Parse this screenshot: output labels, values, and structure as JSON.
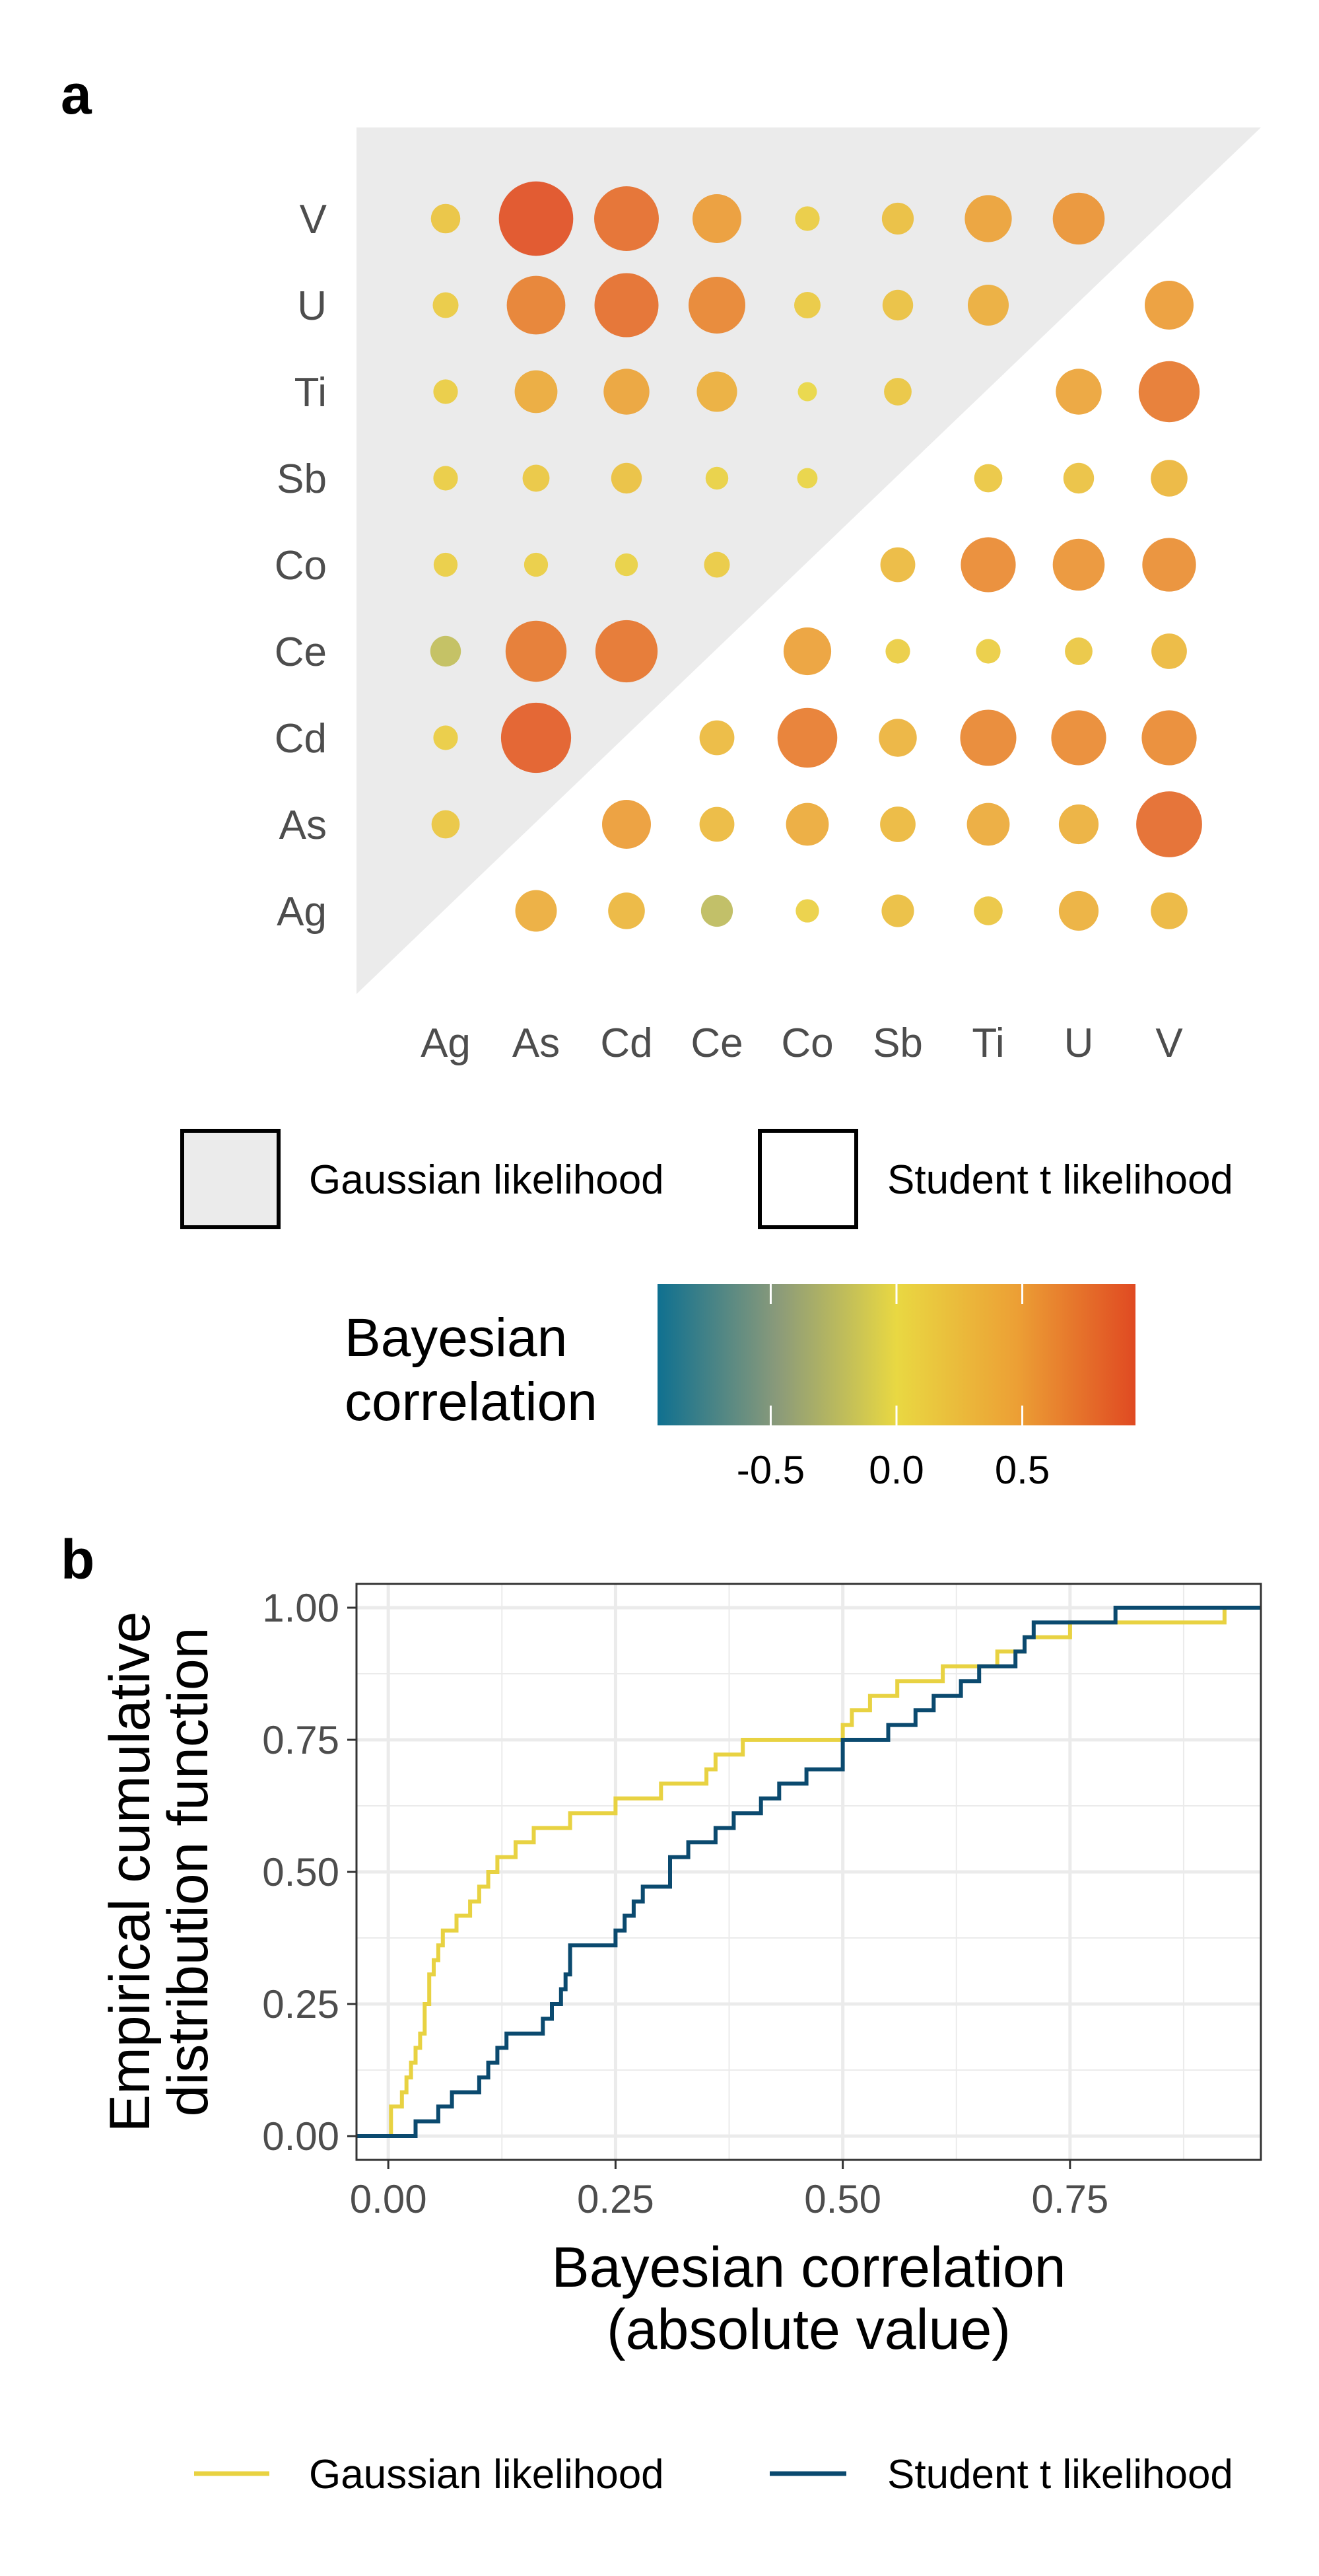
{
  "panels": {
    "a": "a",
    "b": "b"
  },
  "colors": {
    "gaussian_fill": "#ebebeb",
    "gaussian_line": "#e8d242",
    "student_line": "#0b4a6f",
    "scale": [
      "#0f7090",
      "#8a9a7a",
      "#e9d842",
      "#eca035",
      "#e04a22"
    ]
  },
  "chart_data": [
    {
      "type": "heatmap",
      "variables": [
        "Ag",
        "As",
        "Cd",
        "Ce",
        "Co",
        "Sb",
        "Ti",
        "U",
        "V"
      ],
      "x_tick_labels": [
        "Ag",
        "As",
        "Cd",
        "Ce",
        "Co",
        "Sb",
        "Ti",
        "U",
        "V"
      ],
      "y_tick_labels": [
        "Ag",
        "As",
        "Cd",
        "Ce",
        "Co",
        "Sb",
        "Ti",
        "U",
        "V"
      ],
      "gaussian_lower_triangle": [
        {
          "row": "V",
          "col": "Ag",
          "value": 0.18
        },
        {
          "row": "V",
          "col": "As",
          "value": 0.92
        },
        {
          "row": "V",
          "col": "Cd",
          "value": 0.76
        },
        {
          "row": "V",
          "col": "Ce",
          "value": 0.5
        },
        {
          "row": "V",
          "col": "Co",
          "value": 0.1
        },
        {
          "row": "V",
          "col": "Sb",
          "value": 0.22
        },
        {
          "row": "V",
          "col": "Ti",
          "value": 0.47
        },
        {
          "row": "V",
          "col": "U",
          "value": 0.55
        },
        {
          "row": "U",
          "col": "Ag",
          "value": 0.12
        },
        {
          "row": "U",
          "col": "As",
          "value": 0.66
        },
        {
          "row": "U",
          "col": "Cd",
          "value": 0.75
        },
        {
          "row": "U",
          "col": "Ce",
          "value": 0.63
        },
        {
          "row": "U",
          "col": "Co",
          "value": 0.13
        },
        {
          "row": "U",
          "col": "Sb",
          "value": 0.2
        },
        {
          "row": "U",
          "col": "Ti",
          "value": 0.37
        },
        {
          "row": "Ti",
          "col": "Ag",
          "value": 0.1
        },
        {
          "row": "Ti",
          "col": "As",
          "value": 0.4
        },
        {
          "row": "Ti",
          "col": "Cd",
          "value": 0.45
        },
        {
          "row": "Ti",
          "col": "Ce",
          "value": 0.36
        },
        {
          "row": "Ti",
          "col": "Co",
          "value": 0.01
        },
        {
          "row": "Ti",
          "col": "Sb",
          "value": 0.15
        },
        {
          "row": "Sb",
          "col": "Ag",
          "value": 0.1
        },
        {
          "row": "Sb",
          "col": "As",
          "value": 0.14
        },
        {
          "row": "Sb",
          "col": "Cd",
          "value": 0.2
        },
        {
          "row": "Sb",
          "col": "Ce",
          "value": 0.07
        },
        {
          "row": "Sb",
          "col": "Co",
          "value": 0.03
        },
        {
          "row": "Co",
          "col": "Ag",
          "value": 0.09
        },
        {
          "row": "Co",
          "col": "As",
          "value": 0.09
        },
        {
          "row": "Co",
          "col": "Cd",
          "value": 0.07
        },
        {
          "row": "Co",
          "col": "Ce",
          "value": 0.12
        },
        {
          "row": "Ce",
          "col": "Ag",
          "value": -0.2
        },
        {
          "row": "Ce",
          "col": "As",
          "value": 0.7
        },
        {
          "row": "Ce",
          "col": "Cd",
          "value": 0.72
        },
        {
          "row": "Cd",
          "col": "Ag",
          "value": 0.1
        },
        {
          "row": "Cd",
          "col": "As",
          "value": 0.85
        },
        {
          "row": "As",
          "col": "Ag",
          "value": 0.16
        }
      ],
      "student_upper_triangle": [
        {
          "row": "U",
          "col": "V",
          "value": 0.5
        },
        {
          "row": "Ti",
          "col": "U",
          "value": 0.45
        },
        {
          "row": "Ti",
          "col": "V",
          "value": 0.7
        },
        {
          "row": "Sb",
          "col": "Ti",
          "value": 0.16
        },
        {
          "row": "Sb",
          "col": "U",
          "value": 0.2
        },
        {
          "row": "Sb",
          "col": "V",
          "value": 0.3
        },
        {
          "row": "Co",
          "col": "Sb",
          "value": 0.27
        },
        {
          "row": "Co",
          "col": "Ti",
          "value": 0.6
        },
        {
          "row": "Co",
          "col": "U",
          "value": 0.55
        },
        {
          "row": "Co",
          "col": "V",
          "value": 0.58
        },
        {
          "row": "Ce",
          "col": "Co",
          "value": 0.48
        },
        {
          "row": "Ce",
          "col": "Sb",
          "value": 0.1
        },
        {
          "row": "Ce",
          "col": "Ti",
          "value": 0.1
        },
        {
          "row": "Ce",
          "col": "U",
          "value": 0.15
        },
        {
          "row": "Ce",
          "col": "V",
          "value": 0.28
        },
        {
          "row": "Cd",
          "col": "Ce",
          "value": 0.27
        },
        {
          "row": "Cd",
          "col": "Co",
          "value": 0.68
        },
        {
          "row": "Cd",
          "col": "Sb",
          "value": 0.32
        },
        {
          "row": "Cd",
          "col": "Ti",
          "value": 0.62
        },
        {
          "row": "Cd",
          "col": "U",
          "value": 0.6
        },
        {
          "row": "Cd",
          "col": "V",
          "value": 0.6
        },
        {
          "row": "As",
          "col": "Cd",
          "value": 0.5
        },
        {
          "row": "As",
          "col": "Ce",
          "value": 0.27
        },
        {
          "row": "As",
          "col": "Co",
          "value": 0.4
        },
        {
          "row": "As",
          "col": "Sb",
          "value": 0.28
        },
        {
          "row": "As",
          "col": "Ti",
          "value": 0.4
        },
        {
          "row": "As",
          "col": "U",
          "value": 0.35
        },
        {
          "row": "As",
          "col": "V",
          "value": 0.78
        },
        {
          "row": "Ag",
          "col": "As",
          "value": 0.38
        },
        {
          "row": "Ag",
          "col": "Cd",
          "value": 0.3
        },
        {
          "row": "Ag",
          "col": "Ce",
          "value": -0.22
        },
        {
          "row": "Ag",
          "col": "Co",
          "value": 0.08
        },
        {
          "row": "Ag",
          "col": "Sb",
          "value": 0.23
        },
        {
          "row": "Ag",
          "col": "Ti",
          "value": 0.17
        },
        {
          "row": "Ag",
          "col": "U",
          "value": 0.35
        },
        {
          "row": "Ag",
          "col": "V",
          "value": 0.3
        }
      ],
      "shape_legend": [
        {
          "label": "Gaussian likelihood",
          "fill": "#ebebeb"
        },
        {
          "label": "Student t likelihood",
          "fill": "#ffffff"
        }
      ],
      "colorbar": {
        "title_line1": "Bayesian",
        "title_line2": "correlation",
        "range": [
          -0.95,
          0.95
        ],
        "ticks": [
          -0.5,
          0.0,
          0.5
        ],
        "tick_labels": [
          "-0.5",
          "0.0",
          "0.5"
        ]
      }
    },
    {
      "type": "line",
      "step": true,
      "xlabel_line1": "Bayesian correlation",
      "xlabel_line2": "(absolute value)",
      "ylabel_line1": "Empirical cumulative",
      "ylabel_line2": "distribution function",
      "xlim": [
        -0.035,
        0.96
      ],
      "ylim": [
        -0.045,
        1.045
      ],
      "x_ticks": [
        0,
        0.25,
        0.5,
        0.75
      ],
      "x_tick_labels": [
        "0.00",
        "0.25",
        "0.50",
        "0.75"
      ],
      "y_ticks": [
        0,
        0.25,
        0.5,
        0.75,
        1
      ],
      "y_tick_labels": [
        "0.00",
        "0.25",
        "0.50",
        "0.75",
        "1.00"
      ],
      "grid": true,
      "legend_position": "bottom",
      "series": [
        {
          "name": "Gaussian likelihood",
          "color": "#e8d242",
          "x": [
            0.003,
            0.015,
            0.02,
            0.025,
            0.03,
            0.035,
            0.04,
            0.045,
            0.05,
            0.055,
            0.06,
            0.075,
            0.09,
            0.1,
            0.11,
            0.12,
            0.14,
            0.16,
            0.2,
            0.25,
            0.3,
            0.35,
            0.36,
            0.39,
            0.5,
            0.51,
            0.53,
            0.56,
            0.61,
            0.67,
            0.7,
            0.73,
            0.75,
            0.92
          ],
          "y": [
            0.056,
            0.083,
            0.111,
            0.139,
            0.167,
            0.194,
            0.25,
            0.306,
            0.333,
            0.361,
            0.389,
            0.417,
            0.444,
            0.472,
            0.5,
            0.528,
            0.556,
            0.583,
            0.611,
            0.639,
            0.667,
            0.694,
            0.722,
            0.75,
            0.778,
            0.806,
            0.833,
            0.861,
            0.889,
            0.917,
            0.944,
            0.944,
            0.972,
            1.0
          ]
        },
        {
          "name": "Student t likelihood",
          "color": "#0b4a6f",
          "x": [
            0.03,
            0.055,
            0.07,
            0.1,
            0.11,
            0.12,
            0.13,
            0.17,
            0.18,
            0.19,
            0.195,
            0.2,
            0.25,
            0.26,
            0.27,
            0.28,
            0.31,
            0.33,
            0.36,
            0.38,
            0.41,
            0.43,
            0.46,
            0.5,
            0.55,
            0.58,
            0.6,
            0.63,
            0.65,
            0.69,
            0.7,
            0.71,
            0.8,
            0.96
          ],
          "y": [
            0.028,
            0.056,
            0.083,
            0.111,
            0.139,
            0.167,
            0.194,
            0.222,
            0.25,
            0.278,
            0.306,
            0.361,
            0.389,
            0.417,
            0.444,
            0.472,
            0.528,
            0.556,
            0.583,
            0.611,
            0.639,
            0.667,
            0.694,
            0.75,
            0.778,
            0.806,
            0.833,
            0.861,
            0.889,
            0.917,
            0.944,
            0.972,
            1.0,
            1.0
          ]
        }
      ]
    }
  ]
}
